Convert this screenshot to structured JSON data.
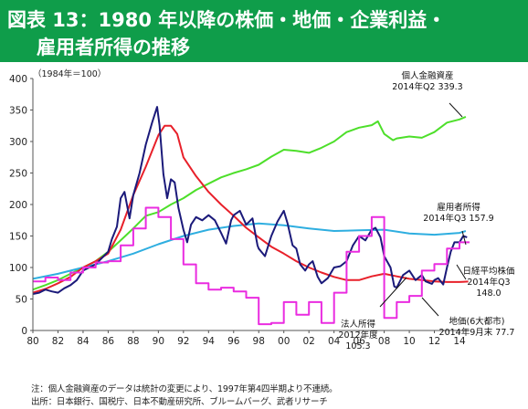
{
  "title": {
    "line1": "図表 13：1980 年以降の株価・地価・企業利益・",
    "line2": "雇用者所得の推移"
  },
  "colors": {
    "banner": "#0f9d4a",
    "household_assets": "#4ddf2a",
    "nikkei": "#1b1a7a",
    "land": "#e8202a",
    "corporate_income": "#ea2ce0",
    "employee_income": "#2eaee0"
  },
  "chart_data": {
    "type": "line",
    "unit_label": "（1984年＝100）",
    "xlim": [
      1980,
      2014.8
    ],
    "ylim": [
      0,
      400
    ],
    "yticks": [
      0,
      50,
      100,
      150,
      200,
      250,
      300,
      350,
      400
    ],
    "xticks": [
      "80",
      "82",
      "84",
      "86",
      "88",
      "90",
      "92",
      "94",
      "96",
      "98",
      "00",
      "02",
      "04",
      "06",
      "08",
      "10",
      "12",
      "14"
    ],
    "xtick_years": [
      1980,
      1982,
      1984,
      1986,
      1988,
      1990,
      1992,
      1994,
      1996,
      1998,
      2000,
      2002,
      2004,
      2006,
      2008,
      2010,
      2012,
      2014
    ],
    "series": [
      {
        "name": "個人金融資産",
        "color": "#4ddf2a",
        "points": [
          [
            1980,
            65
          ],
          [
            1981,
            72
          ],
          [
            1982,
            80
          ],
          [
            1983,
            90
          ],
          [
            1984,
            100
          ],
          [
            1985,
            110
          ],
          [
            1986,
            125
          ],
          [
            1987,
            143
          ],
          [
            1988,
            162
          ],
          [
            1989,
            182
          ],
          [
            1990,
            188
          ],
          [
            1991,
            200
          ],
          [
            1992,
            210
          ],
          [
            1993,
            223
          ],
          [
            1994,
            233
          ],
          [
            1995,
            243
          ],
          [
            1996,
            250
          ],
          [
            1997,
            256
          ],
          [
            1998,
            263
          ],
          [
            1999,
            276
          ],
          [
            2000,
            287
          ],
          [
            2001,
            285
          ],
          [
            2002,
            282
          ],
          [
            2003,
            290
          ],
          [
            2004,
            300
          ],
          [
            2005,
            315
          ],
          [
            2006,
            322
          ],
          [
            2007,
            326
          ],
          [
            2007.5,
            332
          ],
          [
            2008,
            312
          ],
          [
            2008.7,
            302
          ],
          [
            2009,
            305
          ],
          [
            2010,
            308
          ],
          [
            2011,
            306
          ],
          [
            2012,
            315
          ],
          [
            2013,
            330
          ],
          [
            2014,
            335
          ],
          [
            2014.5,
            339.3
          ]
        ]
      },
      {
        "name": "雇用者所得",
        "color": "#2eaee0",
        "points": [
          [
            1980,
            82
          ],
          [
            1982,
            90
          ],
          [
            1984,
            100
          ],
          [
            1986,
            110
          ],
          [
            1988,
            122
          ],
          [
            1990,
            137
          ],
          [
            1992,
            150
          ],
          [
            1994,
            160
          ],
          [
            1996,
            166
          ],
          [
            1998,
            170
          ],
          [
            2000,
            167
          ],
          [
            2002,
            162
          ],
          [
            2004,
            158
          ],
          [
            2006,
            159
          ],
          [
            2008,
            160
          ],
          [
            2010,
            154
          ],
          [
            2012,
            152
          ],
          [
            2014,
            155
          ],
          [
            2014.5,
            157.9
          ]
        ]
      },
      {
        "name": "地価(6大都市)",
        "color": "#e8202a",
        "points": [
          [
            1980,
            60
          ],
          [
            1981,
            66
          ],
          [
            1982,
            75
          ],
          [
            1983,
            85
          ],
          [
            1984,
            100
          ],
          [
            1985,
            110
          ],
          [
            1986,
            122
          ],
          [
            1987,
            160
          ],
          [
            1988,
            215
          ],
          [
            1989,
            260
          ],
          [
            1990,
            310
          ],
          [
            1990.5,
            325
          ],
          [
            1991,
            325
          ],
          [
            1991.5,
            312
          ],
          [
            1992,
            275
          ],
          [
            1993,
            245
          ],
          [
            1994,
            220
          ],
          [
            1995,
            200
          ],
          [
            1996,
            182
          ],
          [
            1997,
            163
          ],
          [
            1998,
            148
          ],
          [
            1999,
            133
          ],
          [
            2000,
            122
          ],
          [
            2001,
            110
          ],
          [
            2002,
            100
          ],
          [
            2003,
            92
          ],
          [
            2004,
            85
          ],
          [
            2005,
            80
          ],
          [
            2006,
            80
          ],
          [
            2007,
            86
          ],
          [
            2008,
            90
          ],
          [
            2009,
            86
          ],
          [
            2010,
            82
          ],
          [
            2011,
            80
          ],
          [
            2012,
            78
          ],
          [
            2013,
            77
          ],
          [
            2014,
            77
          ],
          [
            2014.7,
            77.7
          ]
        ]
      },
      {
        "name": "日経平均株価",
        "color": "#1b1a7a",
        "points": [
          [
            1980,
            58
          ],
          [
            1980.5,
            60
          ],
          [
            1981,
            65
          ],
          [
            1981.5,
            62
          ],
          [
            1982,
            60
          ],
          [
            1982.5,
            67
          ],
          [
            1983,
            72
          ],
          [
            1983.5,
            80
          ],
          [
            1984,
            95
          ],
          [
            1984.5,
            100
          ],
          [
            1985,
            105
          ],
          [
            1985.5,
            115
          ],
          [
            1986,
            125
          ],
          [
            1986.3,
            145
          ],
          [
            1986.7,
            165
          ],
          [
            1987,
            210
          ],
          [
            1987.3,
            220
          ],
          [
            1987.7,
            178
          ],
          [
            1988,
            215
          ],
          [
            1988.5,
            250
          ],
          [
            1989,
            295
          ],
          [
            1989.5,
            330
          ],
          [
            1989.9,
            355
          ],
          [
            1990.1,
            325
          ],
          [
            1990.4,
            248
          ],
          [
            1990.7,
            210
          ],
          [
            1991,
            240
          ],
          [
            1991.3,
            235
          ],
          [
            1991.6,
            195
          ],
          [
            1992,
            160
          ],
          [
            1992.3,
            140
          ],
          [
            1992.6,
            168
          ],
          [
            1993,
            180
          ],
          [
            1993.5,
            175
          ],
          [
            1994,
            183
          ],
          [
            1994.5,
            175
          ],
          [
            1995,
            155
          ],
          [
            1995.4,
            138
          ],
          [
            1995.8,
            175
          ],
          [
            1996,
            183
          ],
          [
            1996.5,
            190
          ],
          [
            1997,
            168
          ],
          [
            1997.5,
            178
          ],
          [
            1997.9,
            135
          ],
          [
            1998,
            130
          ],
          [
            1998.5,
            118
          ],
          [
            1999,
            150
          ],
          [
            1999.5,
            173
          ],
          [
            2000,
            190
          ],
          [
            2000.3,
            170
          ],
          [
            2000.7,
            135
          ],
          [
            2001,
            130
          ],
          [
            2001.3,
            105
          ],
          [
            2001.7,
            95
          ],
          [
            2002,
            105
          ],
          [
            2002.3,
            110
          ],
          [
            2002.7,
            85
          ],
          [
            2003,
            75
          ],
          [
            2003.5,
            83
          ],
          [
            2004,
            100
          ],
          [
            2004.5,
            102
          ],
          [
            2005,
            110
          ],
          [
            2005.5,
            135
          ],
          [
            2006,
            150
          ],
          [
            2006.5,
            143
          ],
          [
            2007,
            160
          ],
          [
            2007.3,
            163
          ],
          [
            2007.7,
            148
          ],
          [
            2008,
            118
          ],
          [
            2008.5,
            100
          ],
          [
            2008.8,
            70
          ],
          [
            2009,
            68
          ],
          [
            2009.5,
            88
          ],
          [
            2010,
            95
          ],
          [
            2010.5,
            80
          ],
          [
            2011,
            88
          ],
          [
            2011.3,
            78
          ],
          [
            2011.8,
            74
          ],
          [
            2012,
            80
          ],
          [
            2012.3,
            83
          ],
          [
            2012.7,
            73
          ],
          [
            2013,
            100
          ],
          [
            2013.3,
            125
          ],
          [
            2013.6,
            140
          ],
          [
            2014,
            140
          ],
          [
            2014.3,
            150
          ],
          [
            2014.6,
            148
          ]
        ]
      },
      {
        "name": "法人所得",
        "color": "#ea2ce0",
        "step": true,
        "points": [
          [
            1980,
            78
          ],
          [
            1981,
            84
          ],
          [
            1982,
            80
          ],
          [
            1983,
            92
          ],
          [
            1984,
            100
          ],
          [
            1985,
            108
          ],
          [
            1986,
            110
          ],
          [
            1987,
            135
          ],
          [
            1988,
            162
          ],
          [
            1989,
            195
          ],
          [
            1990,
            180
          ],
          [
            1991,
            145
          ],
          [
            1992,
            105
          ],
          [
            1993,
            75
          ],
          [
            1994,
            65
          ],
          [
            1995,
            68
          ],
          [
            1996,
            62
          ],
          [
            1997,
            52
          ],
          [
            1998,
            10
          ],
          [
            1999,
            12
          ],
          [
            2000,
            45
          ],
          [
            2001,
            25
          ],
          [
            2002,
            45
          ],
          [
            2003,
            12
          ],
          [
            2004,
            60
          ],
          [
            2005,
            125
          ],
          [
            2006,
            150
          ],
          [
            2007,
            180
          ],
          [
            2008,
            20
          ],
          [
            2009,
            45
          ],
          [
            2010,
            55
          ],
          [
            2011,
            95
          ],
          [
            2012,
            105.3
          ],
          [
            2013,
            130
          ],
          [
            2014,
            140
          ]
        ]
      }
    ],
    "annotations": [
      {
        "lines": [
          "個人金融資産",
          "2014年Q2 339.3"
        ]
      },
      {
        "lines": [
          "雇用者所得",
          "2014年Q3 157.9"
        ]
      },
      {
        "lines": [
          "日経平均株価",
          "2014年Q3",
          "148.0"
        ]
      },
      {
        "lines": [
          "法人所得",
          "2012年度",
          "105.3"
        ]
      },
      {
        "lines": [
          "地価(6大都市)",
          "2014年9月末 77.7"
        ]
      }
    ]
  },
  "footnotes": [
    "注：個人金融資産のデータは統計の変更により、1997年第4四半期より不連続。",
    "出所：日本銀行、国税庁、日本不動産研究所、ブルームバーグ、武者リサーチ"
  ]
}
